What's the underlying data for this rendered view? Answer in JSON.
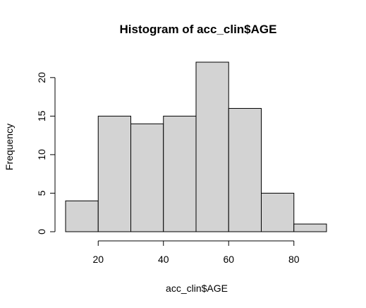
{
  "chart_data": {
    "type": "histogram",
    "title": "Histogram of acc_clin$AGE",
    "xlabel": "acc_clin$AGE",
    "ylabel": "Frequency",
    "bins": [
      {
        "start": 10,
        "end": 20,
        "count": 4
      },
      {
        "start": 20,
        "end": 30,
        "count": 15
      },
      {
        "start": 30,
        "end": 40,
        "count": 14
      },
      {
        "start": 40,
        "end": 50,
        "count": 15
      },
      {
        "start": 50,
        "end": 60,
        "count": 22
      },
      {
        "start": 60,
        "end": 70,
        "count": 16
      },
      {
        "start": 70,
        "end": 80,
        "count": 5
      },
      {
        "start": 80,
        "end": 90,
        "count": 1
      }
    ],
    "x_ticks": [
      "20",
      "40",
      "60",
      "80"
    ],
    "y_ticks": [
      "0",
      "5",
      "10",
      "15",
      "20"
    ],
    "xlim": [
      10,
      90
    ],
    "ylim": [
      0,
      22
    ],
    "bar_fill": "#d3d3d3",
    "bar_stroke": "#000000",
    "grid": false,
    "legend": "none"
  }
}
